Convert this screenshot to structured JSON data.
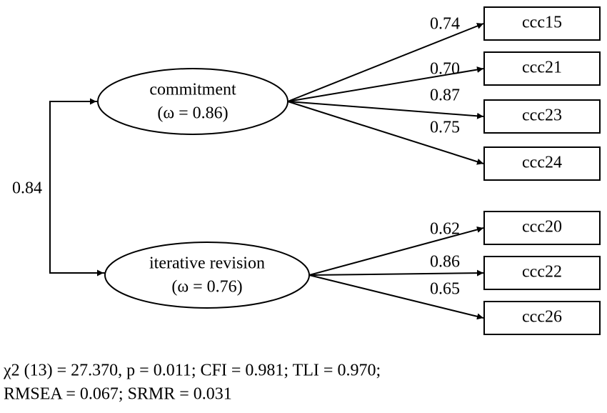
{
  "factors": [
    {
      "label": "commitment",
      "omega": "(ω = 0.86)",
      "indicators": [
        {
          "label": "ccc15",
          "loading": "0.74"
        },
        {
          "label": "ccc21",
          "loading": "0.70"
        },
        {
          "label": "ccc23",
          "loading": "0.87"
        },
        {
          "label": "ccc24",
          "loading": "0.75"
        }
      ]
    },
    {
      "label": "iterative revision",
      "omega": "(ω = 0.76)",
      "indicators": [
        {
          "label": "ccc20",
          "loading": "0.62"
        },
        {
          "label": "ccc22",
          "loading": "0.86"
        },
        {
          "label": "ccc26",
          "loading": "0.65"
        }
      ]
    }
  ],
  "correlation": "0.84",
  "fit": {
    "line1": "χ2 (13) = 27.370, p = 0.011; CFI = 0.981; TLI = 0.970;",
    "line2": "RMSEA = 0.067; SRMR = 0.031"
  }
}
